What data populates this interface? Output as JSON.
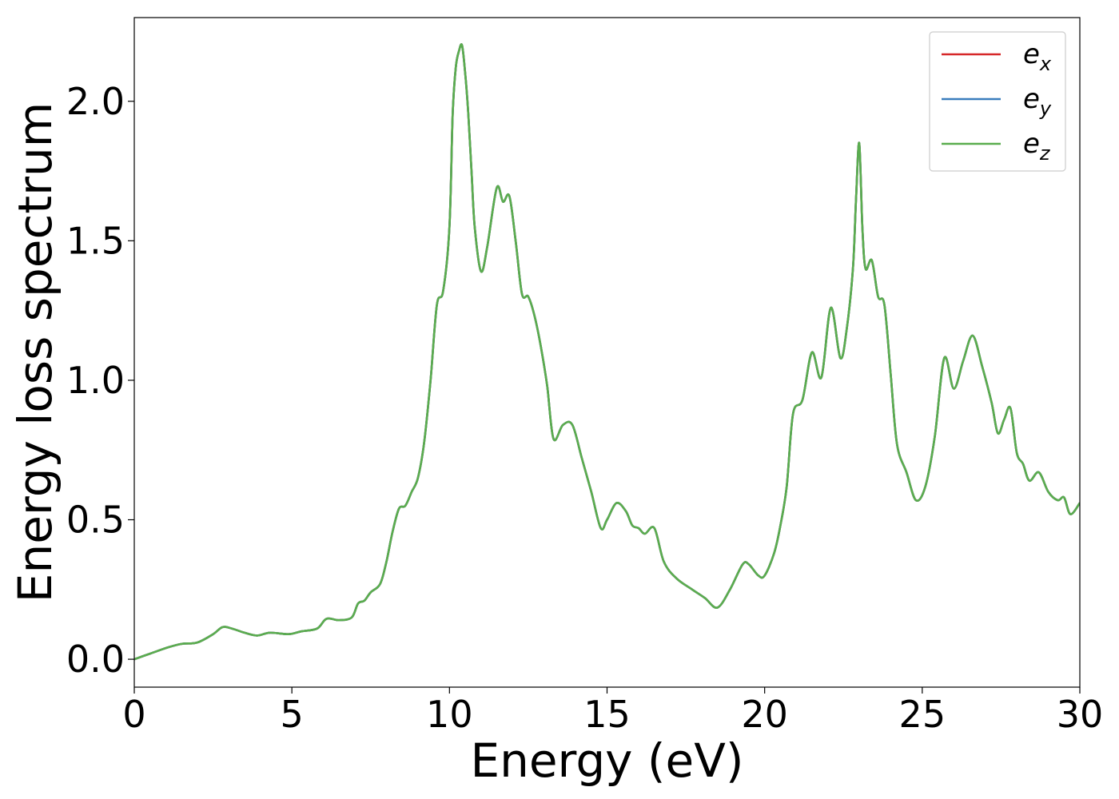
{
  "chart_data": {
    "type": "line",
    "title": "",
    "xlabel": "Energy (eV)",
    "ylabel": "Energy loss spectrum",
    "xlim": [
      0,
      30
    ],
    "ylim": [
      -0.1,
      2.3
    ],
    "xticks": [
      0,
      5,
      10,
      15,
      20,
      25,
      30
    ],
    "xtick_labels": [
      "0",
      "5",
      "10",
      "15",
      "20",
      "25",
      "30"
    ],
    "yticks": [
      0.0,
      0.5,
      1.0,
      1.5,
      2.0
    ],
    "ytick_labels": [
      "0.0",
      "0.5",
      "1.0",
      "1.5",
      "2.0"
    ],
    "grid": false,
    "legend_position": "top-right",
    "series": [
      {
        "name": "e",
        "subscript": "x",
        "color": "#d62728",
        "x": [
          0,
          0.5,
          1.0,
          1.5,
          2.0,
          2.5,
          2.8,
          3.1,
          3.5,
          3.9,
          4.3,
          4.9,
          5.3,
          5.8,
          6.1,
          6.5,
          6.9,
          7.1,
          7.3,
          7.5,
          7.8,
          8.0,
          8.2,
          8.4,
          8.6,
          8.8,
          9.0,
          9.2,
          9.4,
          9.6,
          9.8,
          10.0,
          10.1,
          10.2,
          10.3,
          10.4,
          10.5,
          10.6,
          10.7,
          10.8,
          11.0,
          11.2,
          11.5,
          11.7,
          11.9,
          12.1,
          12.3,
          12.5,
          12.7,
          12.9,
          13.1,
          13.3,
          13.6,
          13.9,
          14.2,
          14.5,
          14.8,
          15.0,
          15.3,
          15.6,
          15.8,
          16.0,
          16.2,
          16.5,
          16.8,
          17.2,
          17.7,
          18.1,
          18.5,
          18.9,
          19.3,
          19.5,
          19.8,
          20.0,
          20.3,
          20.5,
          20.7,
          20.9,
          21.2,
          21.5,
          21.8,
          22.1,
          22.4,
          22.6,
          22.8,
          22.9,
          23.0,
          23.1,
          23.2,
          23.4,
          23.6,
          23.8,
          24.0,
          24.2,
          24.5,
          24.8,
          25.1,
          25.4,
          25.7,
          26.0,
          26.3,
          26.6,
          26.9,
          27.2,
          27.4,
          27.6,
          27.8,
          28.0,
          28.2,
          28.4,
          28.7,
          29.0,
          29.3,
          29.5,
          29.7,
          30.0
        ],
        "y": [
          0.0,
          0.02,
          0.04,
          0.055,
          0.06,
          0.09,
          0.115,
          0.11,
          0.095,
          0.085,
          0.095,
          0.09,
          0.1,
          0.11,
          0.145,
          0.14,
          0.15,
          0.2,
          0.21,
          0.24,
          0.27,
          0.35,
          0.46,
          0.54,
          0.55,
          0.6,
          0.65,
          0.78,
          1.0,
          1.27,
          1.32,
          1.55,
          1.95,
          2.12,
          2.18,
          2.2,
          2.1,
          1.95,
          1.75,
          1.55,
          1.39,
          1.48,
          1.69,
          1.64,
          1.66,
          1.5,
          1.31,
          1.3,
          1.23,
          1.12,
          0.98,
          0.79,
          0.84,
          0.84,
          0.72,
          0.6,
          0.47,
          0.5,
          0.56,
          0.53,
          0.48,
          0.47,
          0.45,
          0.47,
          0.35,
          0.29,
          0.25,
          0.22,
          0.185,
          0.25,
          0.34,
          0.34,
          0.3,
          0.3,
          0.38,
          0.48,
          0.62,
          0.88,
          0.93,
          1.1,
          1.01,
          1.26,
          1.08,
          1.18,
          1.4,
          1.65,
          1.85,
          1.55,
          1.4,
          1.43,
          1.3,
          1.27,
          1.02,
          0.77,
          0.67,
          0.57,
          0.62,
          0.8,
          1.08,
          0.97,
          1.07,
          1.16,
          1.05,
          0.92,
          0.81,
          0.86,
          0.9,
          0.74,
          0.7,
          0.64,
          0.67,
          0.6,
          0.57,
          0.58,
          0.52,
          0.56
        ]
      },
      {
        "name": "e",
        "subscript": "y",
        "color": "#3a7dbd",
        "x": [
          0,
          0.5,
          1.0,
          1.5,
          2.0,
          2.5,
          2.8,
          3.1,
          3.5,
          3.9,
          4.3,
          4.9,
          5.3,
          5.8,
          6.1,
          6.5,
          6.9,
          7.1,
          7.3,
          7.5,
          7.8,
          8.0,
          8.2,
          8.4,
          8.6,
          8.8,
          9.0,
          9.2,
          9.4,
          9.6,
          9.8,
          10.0,
          10.1,
          10.2,
          10.3,
          10.4,
          10.5,
          10.6,
          10.7,
          10.8,
          11.0,
          11.2,
          11.5,
          11.7,
          11.9,
          12.1,
          12.3,
          12.5,
          12.7,
          12.9,
          13.1,
          13.3,
          13.6,
          13.9,
          14.2,
          14.5,
          14.8,
          15.0,
          15.3,
          15.6,
          15.8,
          16.0,
          16.2,
          16.5,
          16.8,
          17.2,
          17.7,
          18.1,
          18.5,
          18.9,
          19.3,
          19.5,
          19.8,
          20.0,
          20.3,
          20.5,
          20.7,
          20.9,
          21.2,
          21.5,
          21.8,
          22.1,
          22.4,
          22.6,
          22.8,
          22.9,
          23.0,
          23.1,
          23.2,
          23.4,
          23.6,
          23.8,
          24.0,
          24.2,
          24.5,
          24.8,
          25.1,
          25.4,
          25.7,
          26.0,
          26.3,
          26.6,
          26.9,
          27.2,
          27.4,
          27.6,
          27.8,
          28.0,
          28.2,
          28.4,
          28.7,
          29.0,
          29.3,
          29.5,
          29.7,
          30.0
        ],
        "y": [
          0.0,
          0.02,
          0.04,
          0.055,
          0.06,
          0.09,
          0.115,
          0.11,
          0.095,
          0.085,
          0.095,
          0.09,
          0.1,
          0.11,
          0.145,
          0.14,
          0.15,
          0.2,
          0.21,
          0.24,
          0.27,
          0.35,
          0.46,
          0.54,
          0.55,
          0.6,
          0.65,
          0.78,
          1.0,
          1.27,
          1.32,
          1.55,
          1.95,
          2.12,
          2.18,
          2.2,
          2.1,
          1.95,
          1.75,
          1.55,
          1.39,
          1.48,
          1.69,
          1.64,
          1.66,
          1.5,
          1.31,
          1.3,
          1.23,
          1.12,
          0.98,
          0.79,
          0.84,
          0.84,
          0.72,
          0.6,
          0.47,
          0.5,
          0.56,
          0.53,
          0.48,
          0.47,
          0.45,
          0.47,
          0.35,
          0.29,
          0.25,
          0.22,
          0.185,
          0.25,
          0.34,
          0.34,
          0.3,
          0.3,
          0.38,
          0.48,
          0.62,
          0.88,
          0.93,
          1.1,
          1.01,
          1.26,
          1.08,
          1.18,
          1.4,
          1.65,
          1.85,
          1.55,
          1.4,
          1.43,
          1.3,
          1.27,
          1.02,
          0.77,
          0.67,
          0.57,
          0.62,
          0.8,
          1.08,
          0.97,
          1.07,
          1.16,
          1.05,
          0.92,
          0.81,
          0.86,
          0.9,
          0.74,
          0.7,
          0.64,
          0.67,
          0.6,
          0.57,
          0.58,
          0.52,
          0.56
        ]
      },
      {
        "name": "e",
        "subscript": "z",
        "color": "#5aad4e",
        "x": [
          0,
          0.5,
          1.0,
          1.5,
          2.0,
          2.5,
          2.8,
          3.1,
          3.5,
          3.9,
          4.3,
          4.9,
          5.3,
          5.8,
          6.1,
          6.5,
          6.9,
          7.1,
          7.3,
          7.5,
          7.8,
          8.0,
          8.2,
          8.4,
          8.6,
          8.8,
          9.0,
          9.2,
          9.4,
          9.6,
          9.8,
          10.0,
          10.1,
          10.2,
          10.3,
          10.4,
          10.5,
          10.6,
          10.7,
          10.8,
          11.0,
          11.2,
          11.5,
          11.7,
          11.9,
          12.1,
          12.3,
          12.5,
          12.7,
          12.9,
          13.1,
          13.3,
          13.6,
          13.9,
          14.2,
          14.5,
          14.8,
          15.0,
          15.3,
          15.6,
          15.8,
          16.0,
          16.2,
          16.5,
          16.8,
          17.2,
          17.7,
          18.1,
          18.5,
          18.9,
          19.3,
          19.5,
          19.8,
          20.0,
          20.3,
          20.5,
          20.7,
          20.9,
          21.2,
          21.5,
          21.8,
          22.1,
          22.4,
          22.6,
          22.8,
          22.9,
          23.0,
          23.1,
          23.2,
          23.4,
          23.6,
          23.8,
          24.0,
          24.2,
          24.5,
          24.8,
          25.1,
          25.4,
          25.7,
          26.0,
          26.3,
          26.6,
          26.9,
          27.2,
          27.4,
          27.6,
          27.8,
          28.0,
          28.2,
          28.4,
          28.7,
          29.0,
          29.3,
          29.5,
          29.7,
          30.0
        ],
        "y": [
          0.0,
          0.02,
          0.04,
          0.055,
          0.06,
          0.09,
          0.115,
          0.11,
          0.095,
          0.085,
          0.095,
          0.09,
          0.1,
          0.11,
          0.145,
          0.14,
          0.15,
          0.2,
          0.21,
          0.24,
          0.27,
          0.35,
          0.46,
          0.54,
          0.55,
          0.6,
          0.65,
          0.78,
          1.0,
          1.27,
          1.32,
          1.55,
          1.95,
          2.12,
          2.18,
          2.2,
          2.1,
          1.95,
          1.75,
          1.55,
          1.39,
          1.48,
          1.69,
          1.64,
          1.66,
          1.5,
          1.31,
          1.3,
          1.23,
          1.12,
          0.98,
          0.79,
          0.84,
          0.84,
          0.72,
          0.6,
          0.47,
          0.5,
          0.56,
          0.53,
          0.48,
          0.47,
          0.45,
          0.47,
          0.35,
          0.29,
          0.25,
          0.22,
          0.185,
          0.25,
          0.34,
          0.34,
          0.3,
          0.3,
          0.38,
          0.48,
          0.62,
          0.88,
          0.93,
          1.1,
          1.01,
          1.26,
          1.08,
          1.18,
          1.4,
          1.65,
          1.85,
          1.55,
          1.4,
          1.43,
          1.3,
          1.27,
          1.02,
          0.77,
          0.67,
          0.57,
          0.62,
          0.8,
          1.08,
          0.97,
          1.07,
          1.16,
          1.05,
          0.92,
          0.81,
          0.86,
          0.9,
          0.74,
          0.7,
          0.64,
          0.67,
          0.6,
          0.57,
          0.58,
          0.52,
          0.56
        ]
      }
    ]
  }
}
